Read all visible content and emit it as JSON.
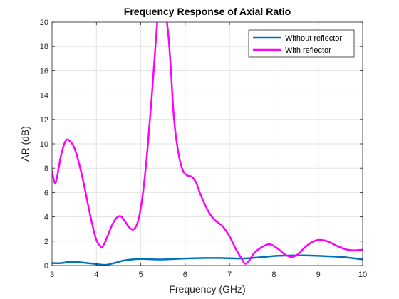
{
  "chart_data": {
    "type": "line",
    "title": "Frequency Response of Axial Ratio",
    "xlabel": "Frequency (GHz)",
    "ylabel": "AR (dB)",
    "xlim": [
      3,
      10
    ],
    "ylim": [
      0,
      20
    ],
    "xticks": [
      3,
      4,
      5,
      6,
      7,
      8,
      9,
      10
    ],
    "yticks": [
      0,
      2,
      4,
      6,
      8,
      10,
      12,
      14,
      16,
      18,
      20
    ],
    "grid": true,
    "legend_position": "top-right",
    "series": [
      {
        "name": "Without reflector",
        "color": "#0072BD",
        "x": [
          3.0,
          3.2,
          3.4,
          3.6,
          3.8,
          4.0,
          4.2,
          4.4,
          4.6,
          4.8,
          5.0,
          5.2,
          5.5,
          5.8,
          6.0,
          6.2,
          6.5,
          6.8,
          7.0,
          7.3,
          7.6,
          8.0,
          8.3,
          8.6,
          9.0,
          9.3,
          9.6,
          10.0
        ],
        "y": [
          0.2,
          0.2,
          0.3,
          0.28,
          0.2,
          0.12,
          0.05,
          0.2,
          0.4,
          0.5,
          0.55,
          0.52,
          0.5,
          0.55,
          0.58,
          0.6,
          0.62,
          0.62,
          0.6,
          0.58,
          0.65,
          0.78,
          0.82,
          0.83,
          0.8,
          0.75,
          0.68,
          0.5
        ]
      },
      {
        "name": "With reflector",
        "color": "#FF00FF",
        "x": [
          3.0,
          3.08,
          3.2,
          3.3,
          3.38,
          3.5,
          3.6,
          3.7,
          3.8,
          3.9,
          4.0,
          4.1,
          4.15,
          4.25,
          4.35,
          4.45,
          4.55,
          4.65,
          4.75,
          4.85,
          4.95,
          5.05,
          5.15,
          5.25,
          5.35,
          5.42,
          5.5,
          5.55,
          5.62,
          5.68,
          5.75,
          5.85,
          5.95,
          6.05,
          6.15,
          6.25,
          6.35,
          6.5,
          6.65,
          6.85,
          7.0,
          7.15,
          7.25,
          7.35,
          7.45,
          7.55,
          7.7,
          7.85,
          7.95,
          8.1,
          8.25,
          8.4,
          8.55,
          8.7,
          8.85,
          9.0,
          9.2,
          9.4,
          9.6,
          9.8,
          10.0
        ],
        "y": [
          7.8,
          6.8,
          9.0,
          10.2,
          10.3,
          9.7,
          8.5,
          7.0,
          5.2,
          3.5,
          2.1,
          1.55,
          1.6,
          2.4,
          3.3,
          3.9,
          4.05,
          3.6,
          3.1,
          3.0,
          3.8,
          6.0,
          9.5,
          14.0,
          19.0,
          22.0,
          22.5,
          21.0,
          19.0,
          16.0,
          12.0,
          9.2,
          7.8,
          7.4,
          7.3,
          6.8,
          5.8,
          4.6,
          3.8,
          3.2,
          2.4,
          1.3,
          0.7,
          0.15,
          0.45,
          1.0,
          1.45,
          1.72,
          1.7,
          1.35,
          0.9,
          0.7,
          0.95,
          1.5,
          1.9,
          2.1,
          2.0,
          1.65,
          1.35,
          1.25,
          1.3
        ]
      }
    ]
  }
}
